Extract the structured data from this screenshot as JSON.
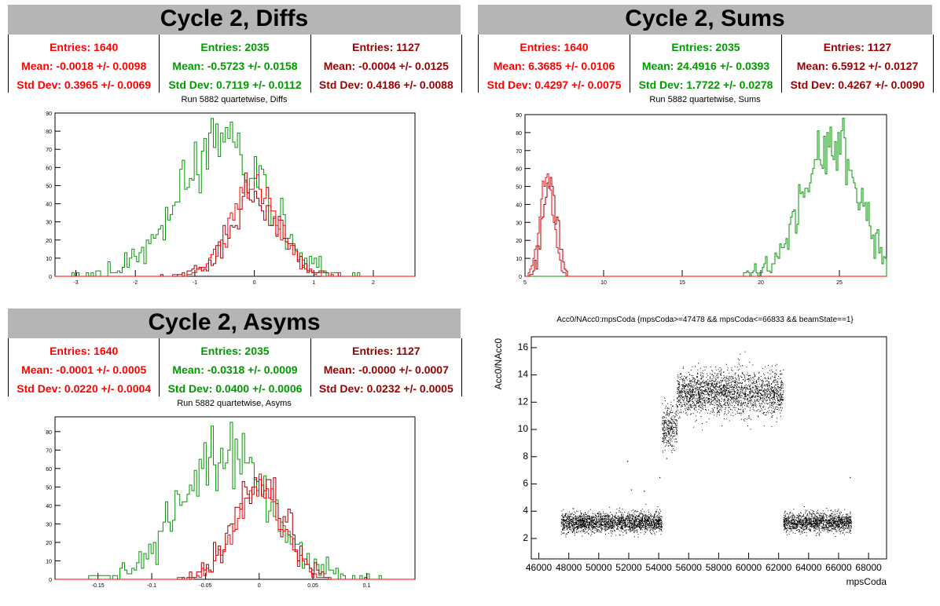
{
  "colors": {
    "red": "#ff0000",
    "green": "#009900",
    "darkred": "#990000",
    "title_bg": "#b5b5b5"
  },
  "panels": {
    "diffs": {
      "title": "Cycle 2, Diffs",
      "subtitle": "Run 5882 quartetwise, Diffs",
      "stats": [
        {
          "entries": "Entries: 1640",
          "mean": "Mean: -0.0018 +/- 0.0098",
          "std": "Std Dev: 0.3965 +/- 0.0069"
        },
        {
          "entries": "Entries: 2035",
          "mean": "Mean: -0.5723 +/- 0.0158",
          "std": "Std Dev: 0.7119 +/- 0.0112"
        },
        {
          "entries": "Entries: 1127",
          "mean": "Mean: -0.0004 +/- 0.0125",
          "std": "Std Dev: 0.4186 +/- 0.0088"
        }
      ]
    },
    "sums": {
      "title": "Cycle 2, Sums",
      "subtitle": "Run 5882 quartetwise, Sums",
      "stats": [
        {
          "entries": "Entries: 1640",
          "mean": "Mean: 6.3685 +/- 0.0106",
          "std": "Std Dev: 0.4297 +/- 0.0075"
        },
        {
          "entries": "Entries: 2035",
          "mean": "Mean: 24.4916 +/- 0.0393",
          "std": "Std Dev: 1.7722 +/- 0.0278"
        },
        {
          "entries": "Entries: 1127",
          "mean": "Mean: 6.5912 +/- 0.0127",
          "std": "Std Dev: 0.4267 +/- 0.0090"
        }
      ]
    },
    "asyms": {
      "title": "Cycle 2, Asyms",
      "subtitle": "Run 5882 quartetwise, Asyms",
      "stats": [
        {
          "entries": "Entries: 1640",
          "mean": "Mean: -0.0001 +/- 0.0005",
          "std": "Std Dev: 0.0220 +/- 0.0004"
        },
        {
          "entries": "Entries: 2035",
          "mean": "Mean: -0.0318 +/- 0.0009",
          "std": "Std Dev: 0.0400 +/- 0.0006"
        },
        {
          "entries": "Entries: 1127",
          "mean": "Mean: -0.0000 +/- 0.0007",
          "std": "Std Dev: 0.0232 +/- 0.0005"
        }
      ]
    },
    "scatter": {
      "title": "Acc0/NAcc0:mpsCoda {mpsCoda>=47478 && mpsCoda<=66833 && beamState==1}"
    }
  },
  "chart_data": [
    {
      "type": "histogram",
      "title": "Run 5882 quartetwise, Diffs",
      "xlim": [
        -3.35,
        2.7
      ],
      "ylim": [
        0,
        90
      ],
      "xticks": [
        -3,
        -2,
        -1,
        0,
        1,
        2
      ],
      "yticks": [
        0,
        10,
        20,
        30,
        40,
        50,
        60,
        70,
        80,
        90
      ],
      "series": [
        {
          "color": "green",
          "entries": 2035,
          "mean": -0.5723,
          "std": 0.7119,
          "peak": 87
        },
        {
          "color": "darkred",
          "entries": 1127,
          "mean": -0.0004,
          "std": 0.4186,
          "peak": 57
        },
        {
          "color": "red",
          "entries": 1640,
          "mean": -0.0018,
          "std": 0.3965,
          "peak": 56
        }
      ]
    },
    {
      "type": "histogram",
      "title": "Run 5882 quartetwise, Sums",
      "xlim": [
        5,
        28
      ],
      "ylim": [
        0,
        90
      ],
      "xticks": [
        5,
        10,
        15,
        20,
        25
      ],
      "yticks": [
        0,
        10,
        20,
        30,
        40,
        50,
        60,
        70,
        80,
        90
      ],
      "series": [
        {
          "color": "green",
          "entries": 2035,
          "mean": 24.4916,
          "std": 1.7722,
          "peak": 88
        },
        {
          "color": "darkred",
          "entries": 1127,
          "mean": 6.5912,
          "std": 0.4267,
          "peak": 55
        },
        {
          "color": "red",
          "entries": 1640,
          "mean": 6.3685,
          "std": 0.4297,
          "peak": 57
        }
      ]
    },
    {
      "type": "histogram",
      "title": "Run 5882 quartetwise, Asyms",
      "xlim": [
        -0.19,
        0.145
      ],
      "ylim": [
        0,
        88
      ],
      "xticks": [
        -0.15,
        -0.1,
        -0.05,
        0,
        0.05,
        0.1
      ],
      "yticks": [
        0,
        10,
        20,
        30,
        40,
        50,
        60,
        70,
        80
      ],
      "series": [
        {
          "color": "green",
          "entries": 2035,
          "mean": -0.0318,
          "std": 0.04,
          "peak": 85
        },
        {
          "color": "darkred",
          "entries": 1127,
          "mean": 0.0,
          "std": 0.0232,
          "peak": 55
        },
        {
          "color": "red",
          "entries": 1640,
          "mean": -0.0001,
          "std": 0.022,
          "peak": 57
        }
      ]
    },
    {
      "type": "scatter",
      "title": "Acc0/NAcc0:mpsCoda {mpsCoda>=47478 && mpsCoda<=66833 && beamState==1}",
      "xlabel": "mpsCoda",
      "ylabel": "Acc0/NAcc0",
      "xlim": [
        45500,
        69200
      ],
      "ylim": [
        0.5,
        16.8
      ],
      "xticks": [
        46000,
        48000,
        50000,
        52000,
        54000,
        56000,
        58000,
        60000,
        62000,
        64000,
        66000,
        68000
      ],
      "yticks": [
        2,
        4,
        6,
        8,
        10,
        12,
        14,
        16
      ],
      "clusters": [
        {
          "x": [
            47478,
            54200
          ],
          "y_center": 3.2,
          "y_spread": 0.35
        },
        {
          "x": [
            54200,
            55200
          ],
          "y_center": 10.2,
          "y_spread": 0.8
        },
        {
          "x": [
            55200,
            62300
          ],
          "y_center": 12.7,
          "y_spread": 0.8
        },
        {
          "x": [
            62300,
            66833
          ],
          "y_center": 3.2,
          "y_spread": 0.35
        }
      ],
      "outliers": [
        [
          51900,
          7.7
        ],
        [
          52150,
          5.6
        ],
        [
          53000,
          5.5
        ],
        [
          54050,
          6.5
        ],
        [
          54500,
          7.9
        ],
        [
          66750,
          6.5
        ]
      ]
    }
  ]
}
